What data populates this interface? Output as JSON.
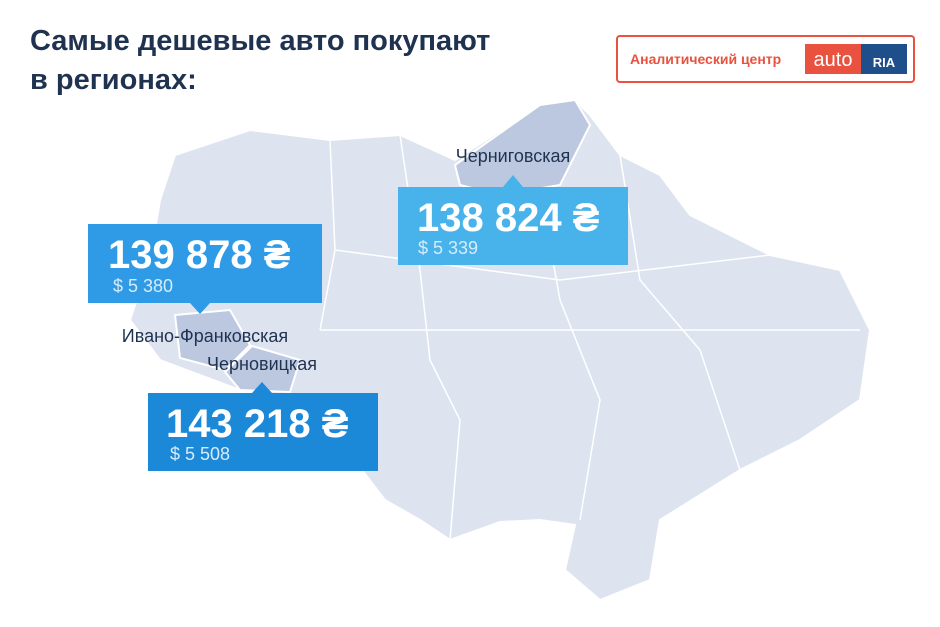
{
  "header": {
    "title_lines": [
      "Самые дешевые авто покупают",
      "в регионах:"
    ]
  },
  "logo": {
    "caption": "Аналитический центр",
    "brand": "auto",
    "mark": "RIA"
  },
  "callouts": [
    {
      "region": "Черниговская",
      "price": "138 824 ₴",
      "usd": "$ 5 339"
    },
    {
      "region": "Ивано-Франковская",
      "price": "139 878 ₴",
      "usd": "$ 5 380"
    },
    {
      "region": "Черновицкая",
      "price": "143 218 ₴",
      "usd": "$ 5 508"
    }
  ]
}
